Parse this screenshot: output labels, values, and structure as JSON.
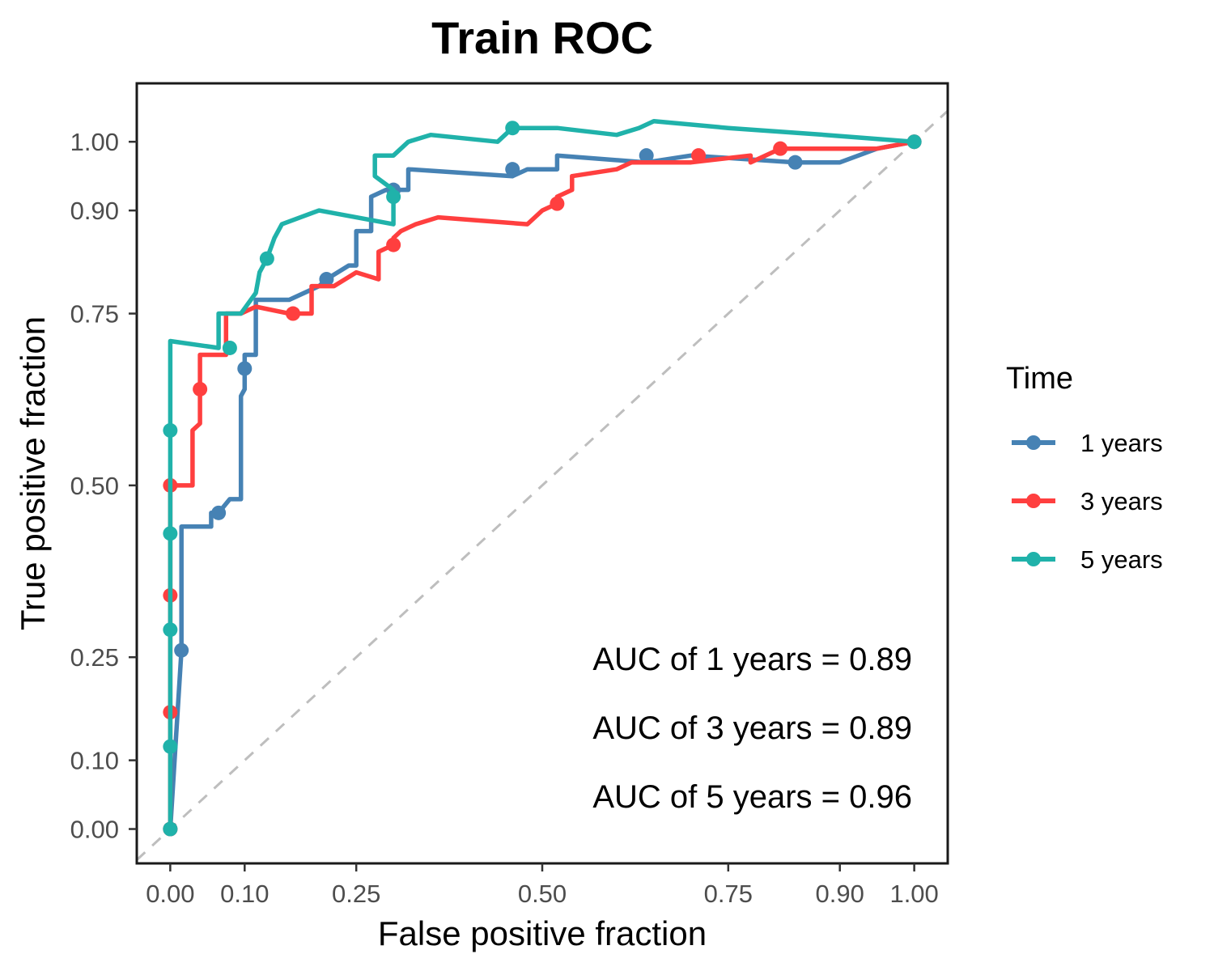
{
  "chart_data": {
    "type": "line",
    "title": "Train ROC",
    "xlabel": "False positive fraction",
    "ylabel": "True positive fraction",
    "xlim": [
      -0.045,
      1.045
    ],
    "ylim": [
      -0.05,
      1.085
    ],
    "x_ticks": [
      0,
      0.1,
      0.25,
      0.5,
      0.75,
      0.9,
      1
    ],
    "x_tick_labels": [
      "0.00",
      "0.10",
      "0.25",
      "0.50",
      "0.75",
      "0.90",
      "1.00"
    ],
    "y_ticks": [
      0,
      0.1,
      0.25,
      0.5,
      0.75,
      0.9,
      1
    ],
    "y_tick_labels": [
      "0.00",
      "0.10",
      "0.25",
      "0.50",
      "0.75",
      "0.90",
      "1.00"
    ],
    "grid": false,
    "reference_line": {
      "from": [
        0,
        0
      ],
      "to": [
        1,
        1
      ],
      "color": "#bebebe",
      "style": "dashed"
    },
    "legend": {
      "title": "Time",
      "position": "right"
    },
    "series": [
      {
        "name": "1 years",
        "color": "#4682B4",
        "points": [
          [
            0,
            0
          ],
          [
            0.015,
            0.26
          ],
          [
            0.015,
            0.44
          ],
          [
            0.055,
            0.44
          ],
          [
            0.055,
            0.46
          ],
          [
            0.065,
            0.46
          ],
          [
            0.08,
            0.48
          ],
          [
            0.095,
            0.48
          ],
          [
            0.095,
            0.63
          ],
          [
            0.1,
            0.64
          ],
          [
            0.1,
            0.69
          ],
          [
            0.115,
            0.69
          ],
          [
            0.115,
            0.77
          ],
          [
            0.16,
            0.77
          ],
          [
            0.2,
            0.79
          ],
          [
            0.21,
            0.8
          ],
          [
            0.24,
            0.82
          ],
          [
            0.25,
            0.82
          ],
          [
            0.25,
            0.87
          ],
          [
            0.27,
            0.87
          ],
          [
            0.27,
            0.92
          ],
          [
            0.29,
            0.93
          ],
          [
            0.3,
            0.93
          ],
          [
            0.32,
            0.93
          ],
          [
            0.32,
            0.96
          ],
          [
            0.46,
            0.95
          ],
          [
            0.48,
            0.96
          ],
          [
            0.52,
            0.96
          ],
          [
            0.52,
            0.98
          ],
          [
            0.64,
            0.97
          ],
          [
            0.7,
            0.98
          ],
          [
            0.84,
            0.97
          ],
          [
            0.9,
            0.97
          ],
          [
            0.95,
            0.99
          ],
          [
            1,
            1
          ]
        ],
        "markers": [
          [
            0,
            0
          ],
          [
            0.015,
            0.26
          ],
          [
            0.065,
            0.46
          ],
          [
            0.1,
            0.67
          ],
          [
            0.21,
            0.8
          ],
          [
            0.3,
            0.93
          ],
          [
            0.46,
            0.96
          ],
          [
            0.64,
            0.98
          ],
          [
            0.84,
            0.97
          ],
          [
            1,
            1
          ]
        ]
      },
      {
        "name": "3 years",
        "color": "#FF3F3F",
        "points": [
          [
            0,
            0
          ],
          [
            0,
            0.17
          ],
          [
            0,
            0.34
          ],
          [
            0,
            0.5
          ],
          [
            0.03,
            0.5
          ],
          [
            0.03,
            0.58
          ],
          [
            0.04,
            0.59
          ],
          [
            0.04,
            0.69
          ],
          [
            0.075,
            0.69
          ],
          [
            0.075,
            0.75
          ],
          [
            0.095,
            0.75
          ],
          [
            0.115,
            0.76
          ],
          [
            0.16,
            0.75
          ],
          [
            0.19,
            0.75
          ],
          [
            0.19,
            0.79
          ],
          [
            0.22,
            0.79
          ],
          [
            0.25,
            0.81
          ],
          [
            0.28,
            0.8
          ],
          [
            0.28,
            0.84
          ],
          [
            0.3,
            0.85
          ],
          [
            0.3,
            0.86
          ],
          [
            0.31,
            0.87
          ],
          [
            0.33,
            0.88
          ],
          [
            0.36,
            0.89
          ],
          [
            0.48,
            0.88
          ],
          [
            0.5,
            0.9
          ],
          [
            0.52,
            0.91
          ],
          [
            0.52,
            0.92
          ],
          [
            0.54,
            0.93
          ],
          [
            0.54,
            0.95
          ],
          [
            0.6,
            0.96
          ],
          [
            0.62,
            0.97
          ],
          [
            0.7,
            0.97
          ],
          [
            0.78,
            0.98
          ],
          [
            0.78,
            0.97
          ],
          [
            0.82,
            0.99
          ],
          [
            0.95,
            0.99
          ],
          [
            1,
            1
          ]
        ],
        "markers": [
          [
            0,
            0
          ],
          [
            0,
            0.17
          ],
          [
            0,
            0.34
          ],
          [
            0,
            0.5
          ],
          [
            0.04,
            0.64
          ],
          [
            0.165,
            0.75
          ],
          [
            0.3,
            0.85
          ],
          [
            0.52,
            0.91
          ],
          [
            0.71,
            0.98
          ],
          [
            0.82,
            0.99
          ],
          [
            1,
            1
          ]
        ]
      },
      {
        "name": "5 years",
        "color": "#20B2AA",
        "points": [
          [
            0,
            0
          ],
          [
            0,
            0.12
          ],
          [
            0,
            0.29
          ],
          [
            0,
            0.43
          ],
          [
            0,
            0.58
          ],
          [
            0,
            0.71
          ],
          [
            0.065,
            0.7
          ],
          [
            0.065,
            0.75
          ],
          [
            0.095,
            0.75
          ],
          [
            0.115,
            0.78
          ],
          [
            0.12,
            0.81
          ],
          [
            0.13,
            0.83
          ],
          [
            0.14,
            0.86
          ],
          [
            0.15,
            0.88
          ],
          [
            0.175,
            0.89
          ],
          [
            0.2,
            0.9
          ],
          [
            0.3,
            0.88
          ],
          [
            0.3,
            0.93
          ],
          [
            0.275,
            0.95
          ],
          [
            0.275,
            0.98
          ],
          [
            0.3,
            0.98
          ],
          [
            0.32,
            1.0
          ],
          [
            0.35,
            1.01
          ],
          [
            0.44,
            1.0
          ],
          [
            0.46,
            1.02
          ],
          [
            0.52,
            1.02
          ],
          [
            0.6,
            1.01
          ],
          [
            0.63,
            1.02
          ],
          [
            0.65,
            1.03
          ],
          [
            0.75,
            1.02
          ],
          [
            0.88,
            1.01
          ],
          [
            1,
            1
          ]
        ],
        "markers": [
          [
            0,
            0
          ],
          [
            0,
            0.12
          ],
          [
            0,
            0.29
          ],
          [
            0,
            0.43
          ],
          [
            0,
            0.58
          ],
          [
            0.08,
            0.7
          ],
          [
            0.13,
            0.83
          ],
          [
            0.3,
            0.92
          ],
          [
            0.46,
            1.02
          ],
          [
            1,
            1
          ]
        ]
      }
    ],
    "annotations": [
      "AUC of 1 years = 0.89",
      "AUC of 3 years = 0.89",
      "AUC of 5 years = 0.96"
    ]
  }
}
